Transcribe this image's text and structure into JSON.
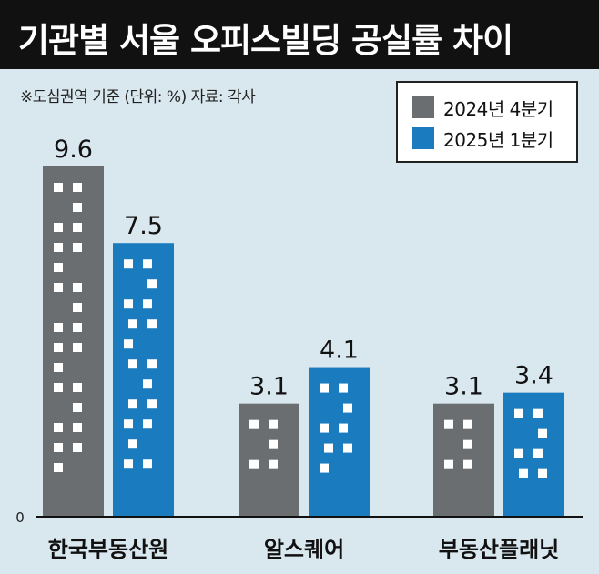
{
  "header": {
    "title": "기관별 서울 오피스빌딩 공실률 차이",
    "subtitle": "※도심권역 기준 (단위: %) 자료: 각사"
  },
  "colors": {
    "series_2024q4": "#6b6e70",
    "series_2025q1": "#1a7bbf",
    "background": "#d9e7ef",
    "header": "#111111",
    "window": "#ffffff"
  },
  "chart_data": {
    "type": "bar",
    "categories": [
      "한국부동산원",
      "알스퀘어",
      "부동산플래닛"
    ],
    "series": [
      {
        "name": "2024년 4분기",
        "values": [
          9.6,
          3.1,
          3.1
        ],
        "labels": [
          "9.6",
          "3.1",
          "3.1"
        ]
      },
      {
        "name": "2025년 1분기",
        "values": [
          7.5,
          4.1,
          3.4
        ],
        "labels": [
          "7.5",
          "4.1",
          "3.4"
        ]
      }
    ],
    "ylim": [
      0,
      9.6
    ],
    "yticks": [
      "0"
    ],
    "legend_position": "top-right",
    "grid": false
  }
}
